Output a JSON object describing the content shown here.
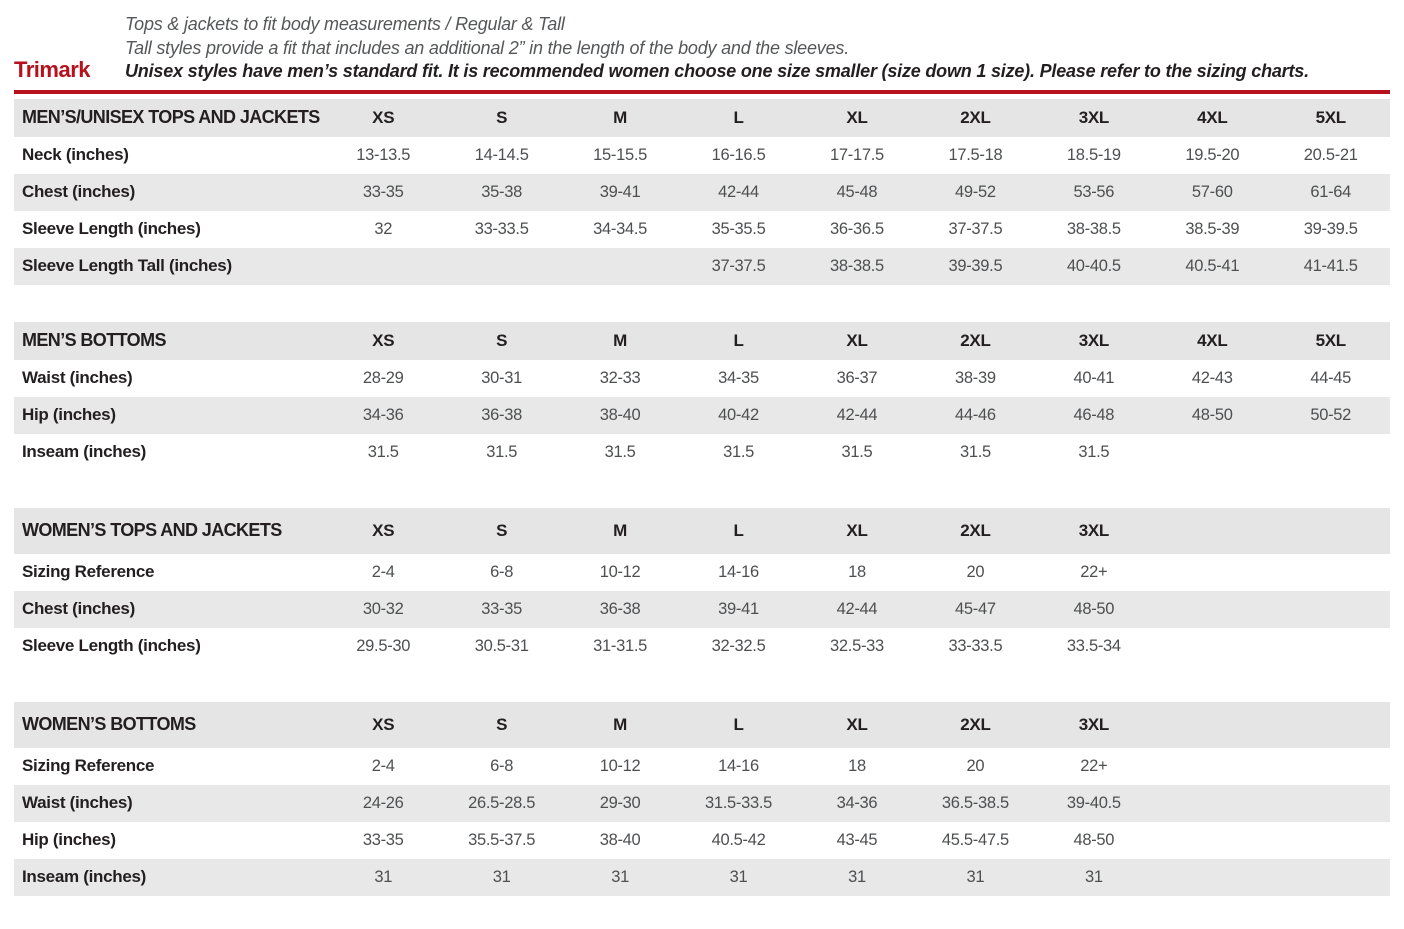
{
  "header": {
    "brand": "Trimark",
    "line1": "Tops & jackets to fit body measurements / Regular & Tall",
    "line2": "Tall styles provide a fit that includes an additional 2” in the length of the body and the sleeves.",
    "line3": "Unisex styles have men’s standard fit. It is recommended women choose one size smaller (size down 1 size).  Please refer to the sizing charts.",
    "accent_color": "#b5121e"
  },
  "tables": [
    {
      "name": "mens-unisex-tops-and-jackets-table",
      "title": "MEN’S/UNISEX TOPS AND JACKETS",
      "tall_header": false,
      "sizes": [
        "XS",
        "S",
        "M",
        "L",
        "XL",
        "2XL",
        "3XL",
        "4XL",
        "5XL"
      ],
      "rows": [
        {
          "label": "Neck (inches)",
          "values": [
            "13-13.5",
            "14-14.5",
            "15-15.5",
            "16-16.5",
            "17-17.5",
            "17.5-18",
            "18.5-19",
            "19.5-20",
            "20.5-21"
          ]
        },
        {
          "label": "Chest (inches)",
          "values": [
            "33-35",
            "35-38",
            "39-41",
            "42-44",
            "45-48",
            "49-52",
            "53-56",
            "57-60",
            "61-64"
          ]
        },
        {
          "label": "Sleeve Length (inches)",
          "values": [
            "32",
            "33-33.5",
            "34-34.5",
            "35-35.5",
            "36-36.5",
            "37-37.5",
            "38-38.5",
            "38.5-39",
            "39-39.5"
          ]
        },
        {
          "label": "Sleeve Length Tall (inches)",
          "values": [
            "",
            "",
            "",
            "37-37.5",
            "38-38.5",
            "39-39.5",
            "40-40.5",
            "40.5-41",
            "41-41.5"
          ]
        }
      ]
    },
    {
      "name": "mens-bottoms-table",
      "title": "MEN’S BOTTOMS",
      "tall_header": false,
      "sizes": [
        "XS",
        "S",
        "M",
        "L",
        "XL",
        "2XL",
        "3XL",
        "4XL",
        "5XL"
      ],
      "rows": [
        {
          "label": "Waist (inches)",
          "values": [
            "28-29",
            "30-31",
            "32-33",
            "34-35",
            "36-37",
            "38-39",
            "40-41",
            "42-43",
            "44-45"
          ]
        },
        {
          "label": "Hip (inches)",
          "values": [
            "34-36",
            "36-38",
            "38-40",
            "40-42",
            "42-44",
            "44-46",
            "46-48",
            "48-50",
            "50-52"
          ]
        },
        {
          "label": "Inseam (inches)",
          "values": [
            "31.5",
            "31.5",
            "31.5",
            "31.5",
            "31.5",
            "31.5",
            "31.5",
            "",
            ""
          ]
        }
      ]
    },
    {
      "name": "womens-tops-and-jackets-table",
      "title": "WOMEN’S TOPS AND JACKETS",
      "tall_header": true,
      "sizes": [
        "XS",
        "S",
        "M",
        "L",
        "XL",
        "2XL",
        "3XL"
      ],
      "rows": [
        {
          "label": "Sizing Reference",
          "values": [
            "2-4",
            "6-8",
            "10-12",
            "14-16",
            "18",
            "20",
            "22+"
          ]
        },
        {
          "label": "Chest (inches)",
          "values": [
            "30-32",
            "33-35",
            "36-38",
            "39-41",
            "42-44",
            "45-47",
            "48-50"
          ]
        },
        {
          "label": "Sleeve Length (inches)",
          "values": [
            "29.5-30",
            "30.5-31",
            "31-31.5",
            "32-32.5",
            "32.5-33",
            "33-33.5",
            "33.5-34"
          ]
        }
      ]
    },
    {
      "name": "womens-bottoms-table",
      "title": "WOMEN’S BOTTOMS",
      "tall_header": true,
      "sizes": [
        "XS",
        "S",
        "M",
        "L",
        "XL",
        "2XL",
        "3XL"
      ],
      "rows": [
        {
          "label": "Sizing Reference",
          "values": [
            "2-4",
            "6-8",
            "10-12",
            "14-16",
            "18",
            "20",
            "22+"
          ]
        },
        {
          "label": "Waist (inches)",
          "values": [
            "24-26",
            "26.5-28.5",
            "29-30",
            "31.5-33.5",
            "34-36",
            "36.5-38.5",
            "39-40.5"
          ]
        },
        {
          "label": "Hip (inches)",
          "values": [
            "33-35",
            "35.5-37.5",
            "38-40",
            "40.5-42",
            "43-45",
            "45.5-47.5",
            "48-50"
          ]
        },
        {
          "label": "Inseam (inches)",
          "values": [
            "31",
            "31",
            "31",
            "31",
            "31",
            "31",
            "31"
          ]
        }
      ]
    }
  ]
}
